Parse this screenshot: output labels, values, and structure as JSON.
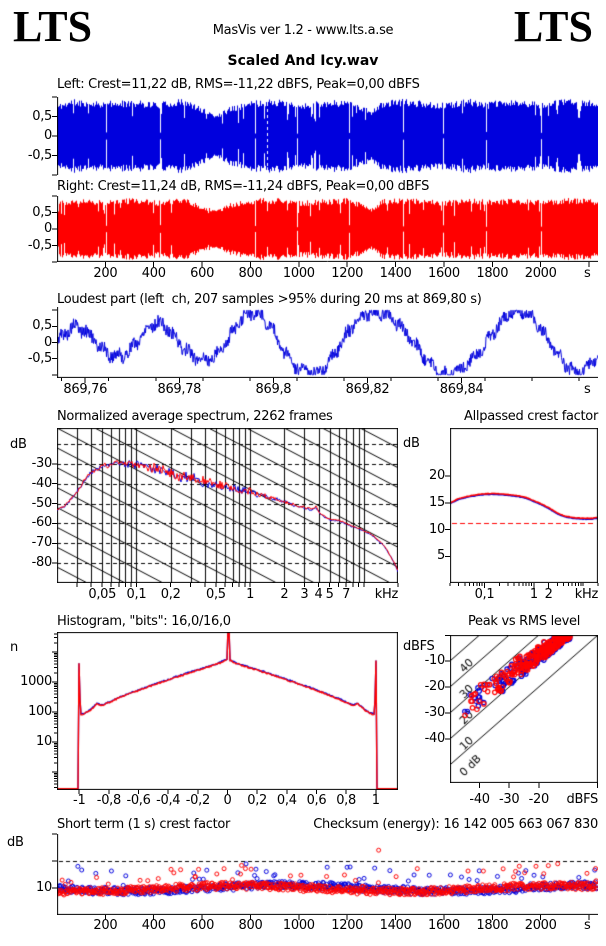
{
  "header": {
    "logo_left": "LTS",
    "logo_right": "LTS",
    "app_line": "MasVis ver 1.2 - www.lts.a.se",
    "file_title": "Scaled And Icy.wav"
  },
  "colors": {
    "left_channel": "#0000dd",
    "right_channel": "#ff0000",
    "axis": "#000000",
    "reference_dashed": "#ff0000",
    "background": "#ffffff"
  },
  "units": {
    "seconds": "s",
    "kilohertz": "kHz",
    "db": "dB",
    "dbfs": "dBFS",
    "count": "n"
  },
  "left_channel": {
    "stats_label": "Left: Crest=11,22 dB, RMS=-11,22 dBFS, Peak=0,00 dBFS",
    "crest_db": "11,22",
    "rms_dbfs": "-11,22",
    "peak_dbfs": "0,00"
  },
  "right_channel": {
    "stats_label": "Right: Crest=11,24 dB, RMS=-11,24 dBFS, Peak=0,00 dBFS",
    "crest_db": "11,24",
    "rms_dbfs": "-11,24",
    "peak_dbfs": "0,00"
  },
  "chart_data": [
    {
      "id": "left_waveform",
      "type": "area",
      "channel": "left",
      "y_range": [
        -1,
        1
      ],
      "y_ticks": {
        "values": [
          0.5,
          0,
          -0.5
        ],
        "labels": [
          "0,5",
          "0",
          "-0,5"
        ]
      },
      "x_range_s": [
        0,
        2237
      ],
      "loudest_marker_s": 869.8,
      "track_boundaries_s": [
        204,
        427,
        602,
        819,
        991,
        1207,
        1431,
        1597,
        1773,
        2000
      ],
      "envelope_t_amp": [
        [
          0,
          0.82
        ],
        [
          60,
          0.95
        ],
        [
          204,
          0.9
        ],
        [
          300,
          0.93
        ],
        [
          427,
          0.88
        ],
        [
          520,
          0.96
        ],
        [
          602,
          0.72
        ],
        [
          660,
          0.55
        ],
        [
          720,
          0.78
        ],
        [
          819,
          0.92
        ],
        [
          900,
          0.96
        ],
        [
          991,
          0.84
        ],
        [
          1100,
          0.92
        ],
        [
          1207,
          0.93
        ],
        [
          1300,
          0.66
        ],
        [
          1345,
          0.9
        ],
        [
          1431,
          0.96
        ],
        [
          1520,
          0.9
        ],
        [
          1597,
          0.86
        ],
        [
          1700,
          0.96
        ],
        [
          1773,
          0.9
        ],
        [
          1900,
          0.93
        ],
        [
          2000,
          0.88
        ],
        [
          2120,
          0.96
        ],
        [
          2237,
          0.9
        ]
      ]
    },
    {
      "id": "right_waveform",
      "type": "area",
      "channel": "right",
      "y_range": [
        -1,
        1
      ],
      "y_ticks": {
        "values": [
          0.5,
          0,
          -0.5
        ],
        "labels": [
          "0,5",
          "0",
          "-0,5"
        ]
      },
      "x_range_s": [
        0,
        2237
      ],
      "x_ticks": {
        "values": [
          200,
          400,
          600,
          800,
          1000,
          1200,
          1400,
          1600,
          1800,
          2000
        ],
        "labels": [
          "200",
          "400",
          "600",
          "800",
          "1000",
          "1200",
          "1400",
          "1600",
          "1800",
          "2000"
        ]
      },
      "track_boundaries_s": [
        204,
        427,
        602,
        819,
        991,
        1207,
        1431,
        1597,
        1773,
        2000
      ],
      "envelope_t_amp": [
        [
          0,
          0.84
        ],
        [
          60,
          0.94
        ],
        [
          204,
          0.9
        ],
        [
          300,
          0.94
        ],
        [
          427,
          0.87
        ],
        [
          520,
          0.96
        ],
        [
          602,
          0.7
        ],
        [
          660,
          0.57
        ],
        [
          720,
          0.8
        ],
        [
          819,
          0.93
        ],
        [
          900,
          0.95
        ],
        [
          991,
          0.85
        ],
        [
          1100,
          0.91
        ],
        [
          1207,
          0.94
        ],
        [
          1300,
          0.65
        ],
        [
          1345,
          0.91
        ],
        [
          1431,
          0.95
        ],
        [
          1520,
          0.91
        ],
        [
          1597,
          0.85
        ],
        [
          1700,
          0.96
        ],
        [
          1773,
          0.91
        ],
        [
          1900,
          0.92
        ],
        [
          2000,
          0.89
        ],
        [
          2120,
          0.95
        ],
        [
          2237,
          0.9
        ]
      ]
    },
    {
      "id": "loudest_part",
      "type": "line",
      "title": "Loudest part (left  ch, 207 samples >95% during 20 ms at 869,80 s)",
      "samples_over_95": 207,
      "window_ms": 20,
      "at_s_label": "869,80",
      "x_range_s": [
        869.754,
        869.869
      ],
      "x_ticks": {
        "values": [
          869.76,
          869.78,
          869.8,
          869.82,
          869.84
        ],
        "labels": [
          "869,76",
          "869,78",
          "869,8",
          "869,82",
          "869,84"
        ]
      },
      "y_range": [
        -1.1,
        1.1
      ],
      "y_ticks": {
        "values": [
          0.5,
          0,
          -0.5
        ],
        "labels": [
          "0,5",
          "0",
          "-0,5"
        ]
      },
      "envelope_t_amp": [
        [
          0,
          0.5
        ],
        [
          0.012,
          0.4
        ],
        [
          0.02,
          0.62
        ],
        [
          0.03,
          0.48
        ],
        [
          0.038,
          0.8
        ],
        [
          0.045,
          1.05
        ],
        [
          0.052,
          0.92
        ],
        [
          0.06,
          1.08
        ],
        [
          0.068,
          0.95
        ],
        [
          0.078,
          1.02
        ],
        [
          0.088,
          0.9
        ],
        [
          0.098,
          1.0
        ],
        [
          0.108,
          0.88
        ],
        [
          0.115,
          0.97
        ]
      ]
    },
    {
      "id": "spectrum",
      "type": "line",
      "title": "Normalized average spectrum, 2262 frames",
      "frames": 2262,
      "ylabel": "dB",
      "x_unit": "kHz",
      "freq_range_khz": [
        0.02,
        20
      ],
      "db_range": [
        -90,
        -12
      ],
      "y_ticks": {
        "values": [
          -30,
          -40,
          -50,
          -60,
          -70,
          -80
        ],
        "labels": [
          "-30",
          "-40",
          "-50",
          "-60",
          "-70",
          "-80"
        ]
      },
      "x_ticks": {
        "values": [
          0.05,
          0.1,
          0.2,
          0.5,
          1,
          2,
          3,
          4,
          5,
          7
        ],
        "labels": [
          "0,05",
          "0,1",
          "0,2",
          "0,5",
          "1",
          "2",
          "3",
          "4",
          "5",
          "7"
        ]
      },
      "dashed_levels_db": [
        -20,
        -30,
        -40,
        -50,
        -60,
        -70,
        -80
      ],
      "diagonal_slope_db_per_decade": -30,
      "curve_khz_db": [
        [
          0.02,
          -53
        ],
        [
          0.024,
          -50.5
        ],
        [
          0.028,
          -46
        ],
        [
          0.032,
          -41.5
        ],
        [
          0.036,
          -37
        ],
        [
          0.04,
          -34
        ],
        [
          0.045,
          -32.3
        ],
        [
          0.05,
          -31.3
        ],
        [
          0.06,
          -30.3
        ],
        [
          0.07,
          -29.6
        ],
        [
          0.08,
          -30.2
        ],
        [
          0.09,
          -30.0
        ],
        [
          0.1,
          -29.8
        ],
        [
          0.12,
          -31
        ],
        [
          0.15,
          -32.5
        ],
        [
          0.2,
          -34.5
        ],
        [
          0.25,
          -36
        ],
        [
          0.3,
          -37.3
        ],
        [
          0.4,
          -39.3
        ],
        [
          0.5,
          -40.3
        ],
        [
          0.6,
          -41.3
        ],
        [
          0.7,
          -42.2
        ],
        [
          0.85,
          -43.2
        ],
        [
          1,
          -44
        ],
        [
          1.2,
          -45.3
        ],
        [
          1.5,
          -46.8
        ],
        [
          2,
          -49
        ],
        [
          2.5,
          -50.8
        ],
        [
          3,
          -52
        ],
        [
          3.5,
          -53
        ],
        [
          3.8,
          -51.5
        ],
        [
          4,
          -54
        ],
        [
          4.5,
          -56.5
        ],
        [
          5,
          -58
        ],
        [
          6,
          -58.5
        ],
        [
          7,
          -60
        ],
        [
          8,
          -61.5
        ],
        [
          10,
          -63.5
        ],
        [
          12,
          -66
        ],
        [
          15,
          -71
        ],
        [
          17,
          -76
        ],
        [
          19,
          -81
        ],
        [
          20,
          -84
        ]
      ]
    },
    {
      "id": "allpassed_crest",
      "type": "line",
      "title": "Allpassed crest factor",
      "ylabel": "dB",
      "x_unit": "kHz",
      "freq_range_khz": [
        0.02,
        20
      ],
      "y_range": [
        0,
        29
      ],
      "y_ticks": {
        "values": [
          20,
          15,
          10,
          5
        ],
        "labels": [
          "20",
          "15",
          "10",
          "5"
        ]
      },
      "x_ticks": {
        "values": [
          0.1,
          1,
          2
        ],
        "labels": [
          "0,1",
          "1",
          "2"
        ]
      },
      "reference_db": 11.2,
      "curve_khz_db": [
        [
          0.02,
          15.0
        ],
        [
          0.03,
          15.8
        ],
        [
          0.05,
          16.3
        ],
        [
          0.08,
          16.6
        ],
        [
          0.1,
          16.7
        ],
        [
          0.15,
          16.75
        ],
        [
          0.2,
          16.7
        ],
        [
          0.3,
          16.55
        ],
        [
          0.5,
          16.3
        ],
        [
          0.7,
          16.0
        ],
        [
          1,
          15.4
        ],
        [
          1.5,
          14.7
        ],
        [
          2,
          14.1
        ],
        [
          3,
          13.1
        ],
        [
          4,
          12.6
        ],
        [
          5,
          12.4
        ],
        [
          7,
          12.2
        ],
        [
          10,
          12.1
        ],
        [
          15,
          12.1
        ],
        [
          20,
          12.3
        ]
      ]
    },
    {
      "id": "histogram",
      "type": "line",
      "title": "Histogram, \"bits\": 16,0/16,0",
      "bits_left": "16,0",
      "bits_right": "16,0",
      "ylabel": "n",
      "x_range": [
        -1.15,
        1.15
      ],
      "y_log_range": [
        0.25,
        46000
      ],
      "y_ticks": {
        "values": [
          1000,
          100,
          10
        ],
        "labels": [
          "1000",
          "100",
          "10"
        ]
      },
      "x_ticks": {
        "values": [
          -1,
          -0.8,
          -0.6,
          -0.4,
          -0.2,
          0,
          0.2,
          0.4,
          0.6,
          0.8,
          1
        ],
        "labels": [
          "-1",
          "-0,8",
          "-0,6",
          "-0,4",
          "-0,2",
          "0",
          "0,2",
          "0,4",
          "0,6",
          "0,8",
          "1"
        ]
      },
      "profile_abs_x_n": [
        [
          0,
          5800
        ],
        [
          0.05,
          4300
        ],
        [
          0.1,
          3500
        ],
        [
          0.2,
          2450
        ],
        [
          0.3,
          1700
        ],
        [
          0.4,
          1150
        ],
        [
          0.5,
          780
        ],
        [
          0.6,
          520
        ],
        [
          0.7,
          335
        ],
        [
          0.8,
          205
        ],
        [
          0.85,
          165
        ],
        [
          0.88,
          188
        ],
        [
          0.9,
          148
        ],
        [
          0.93,
          110
        ],
        [
          0.96,
          90
        ],
        [
          0.985,
          82
        ]
      ],
      "clip_spike_n": {
        "neg": 4200,
        "pos": 5200
      },
      "center_spike_to_top": true
    },
    {
      "id": "peak_vs_rms",
      "type": "scatter",
      "title": "Peak vs RMS level",
      "xlabel": "dBFS",
      "ylabel": "dBFS",
      "x_range": [
        -50,
        0
      ],
      "y_range": [
        -57,
        0
      ],
      "x_ticks": {
        "values": [
          -40,
          -30,
          -20
        ],
        "labels": [
          "-40",
          "-30",
          "-20"
        ]
      },
      "y_ticks": {
        "values": [
          -10,
          -20,
          -30,
          -40
        ],
        "labels": [
          "-10",
          "-20",
          "-30",
          "-40"
        ]
      },
      "iso_lines_db": [
        0,
        10,
        20,
        30,
        40
      ],
      "iso_labels": [
        "0 dB",
        "10",
        "20",
        "30",
        "40"
      ],
      "point_count_per_channel": 230,
      "cluster_summary": "dense cluster RMS -8..-22 dBFS with peaks -0.5..-8 dBFS, sparse tail to RMS -45, peak -33"
    },
    {
      "id": "short_term_crest",
      "type": "scatter",
      "title": "Short term (1 s) crest factor",
      "checksum_label": "Checksum (energy): 16 142 005 663 067 830",
      "checksum": "16 142 005 663 067 830",
      "ylabel": "dB",
      "y_range": [
        0,
        30
      ],
      "y_ticks": {
        "values": [
          10
        ],
        "labels": [
          "10"
        ]
      },
      "dashed_levels_db": [
        10,
        20
      ],
      "x_range_s": [
        0,
        2237
      ],
      "x_ticks": {
        "values": [
          200,
          400,
          600,
          800,
          1000,
          1200,
          1400,
          1600,
          1800,
          2000
        ],
        "labels": [
          "200",
          "400",
          "600",
          "800",
          "1000",
          "1200",
          "1400",
          "1600",
          "1800",
          "2000"
        ]
      },
      "typical_crest_db": [
        8,
        13
      ],
      "outlier": {
        "t_s": 1330,
        "crest_db": 24
      }
    }
  ]
}
